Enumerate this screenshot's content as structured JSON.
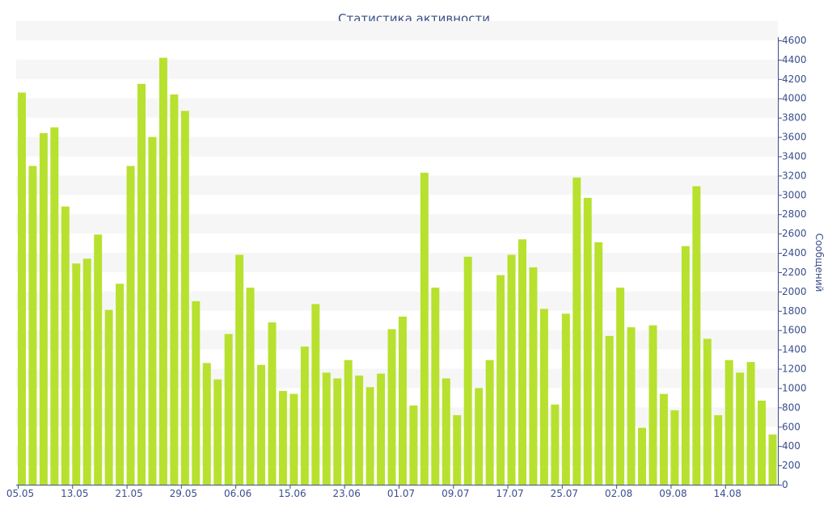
{
  "colors": {
    "bar": "#b7e12e",
    "band": "#f6f6f6",
    "axis": "#3a4e8c",
    "title": "#3b4f86"
  },
  "chart_data": {
    "type": "bar",
    "title": "Статистика активности",
    "xlabel": "",
    "ylabel": "Сообщений",
    "ylim": [
      0,
      4600
    ],
    "y_axis_side": "right",
    "y_ticks": [
      0,
      200,
      400,
      600,
      800,
      1000,
      1200,
      1400,
      1600,
      1800,
      2000,
      2200,
      2400,
      2600,
      2800,
      3000,
      3200,
      3400,
      3600,
      3800,
      4000,
      4200,
      4400,
      4600
    ],
    "x_tick_labels": [
      "05.05",
      "13.05",
      "21.05",
      "29.05",
      "06.06",
      "15.06",
      "23.06",
      "01.07",
      "09.07",
      "17.07",
      "25.07",
      "02.08",
      "09.08",
      "14.08"
    ],
    "x_tick_every": 5,
    "grid": "alternating horizontal bands",
    "values": [
      4060,
      3300,
      3640,
      3700,
      2880,
      2290,
      2340,
      2590,
      1810,
      2080,
      3300,
      4150,
      3600,
      4420,
      4040,
      3870,
      1900,
      1260,
      1090,
      1560,
      2380,
      2040,
      1240,
      1680,
      970,
      940,
      1430,
      1870,
      1160,
      1100,
      1290,
      1130,
      1010,
      1150,
      1610,
      1740,
      820,
      3230,
      2040,
      1100,
      720,
      2360,
      1000,
      1290,
      2170,
      2380,
      2540,
      2250,
      1820,
      830,
      1770,
      3180,
      2970,
      2510,
      1540,
      2040,
      1630,
      590,
      1650,
      940,
      770,
      2470,
      3090,
      1510,
      720,
      1290,
      1160,
      1270,
      870,
      520
    ]
  }
}
